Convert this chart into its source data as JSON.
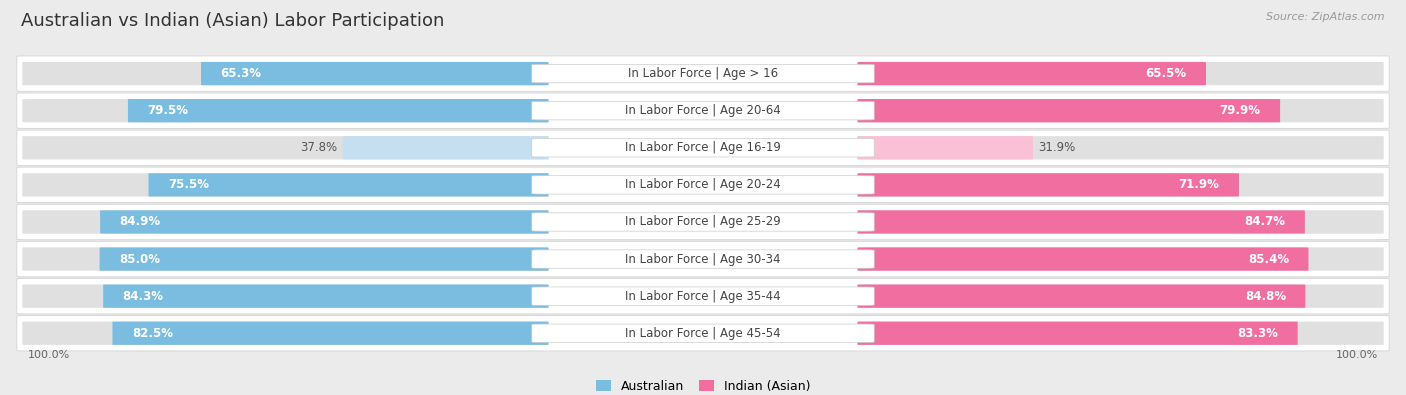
{
  "title": "Australian vs Indian (Asian) Labor Participation",
  "source": "Source: ZipAtlas.com",
  "categories": [
    "In Labor Force | Age > 16",
    "In Labor Force | Age 20-64",
    "In Labor Force | Age 16-19",
    "In Labor Force | Age 20-24",
    "In Labor Force | Age 25-29",
    "In Labor Force | Age 30-34",
    "In Labor Force | Age 35-44",
    "In Labor Force | Age 45-54"
  ],
  "australian_values": [
    65.3,
    79.5,
    37.8,
    75.5,
    84.9,
    85.0,
    84.3,
    82.5
  ],
  "indian_values": [
    65.5,
    79.9,
    31.9,
    71.9,
    84.7,
    85.4,
    84.8,
    83.3
  ],
  "australian_color": "#7bbde0",
  "australian_color_light": "#c5dff0",
  "indian_color": "#f06fa0",
  "indian_color_light": "#f9c0d6",
  "bg_color": "#ebebeb",
  "row_bg_even": "#f8f8f8",
  "row_bg_odd": "#f0f0f0",
  "max_value": 100.0,
  "title_fontsize": 13,
  "label_fontsize": 8.5,
  "value_fontsize": 8.5,
  "legend_fontsize": 9,
  "axis_fontsize": 8
}
